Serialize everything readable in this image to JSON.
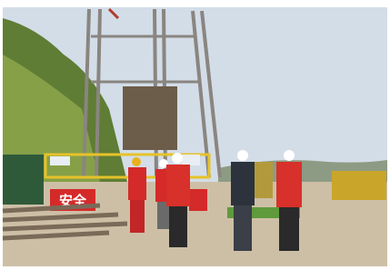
{
  "photo": {
    "sign_text": "安全"
  }
}
